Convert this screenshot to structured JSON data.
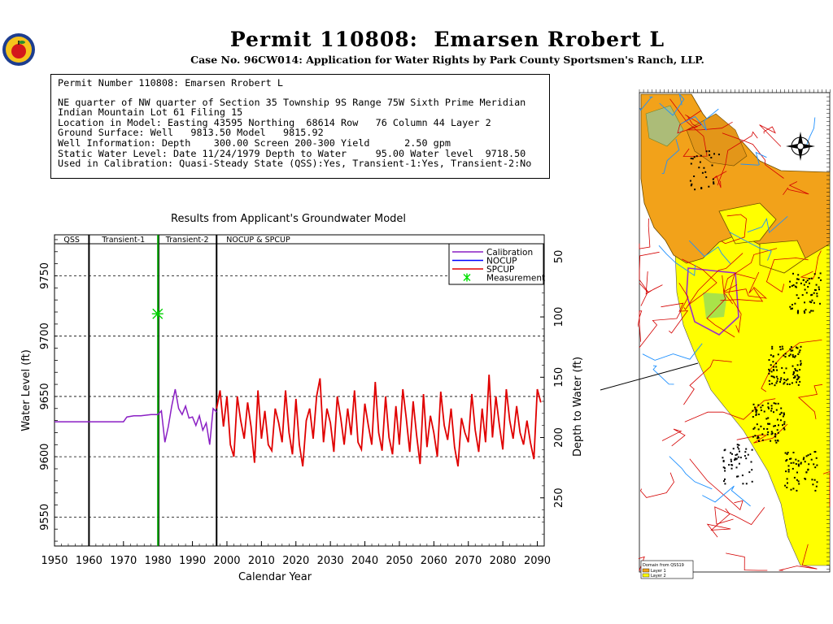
{
  "header": {
    "title": "Permit 110808:  Emarsen Rrobert L",
    "subtitle": "Case No. 96CW014: Application for Water Rights by Park County Sportsmen's Ranch, LLP."
  },
  "info": {
    "lines": [
      "Permit Number 110808: Emarsen Rrobert L",
      "",
      "NE quarter of NW quarter of Section 35 Township 9S Range 75W Sixth Prime Meridian",
      "Indian Mountain Lot 61 Filing 15",
      "Location in Model: Easting 43595 Northing  68614 Row   76 Column 44 Layer 2",
      "Ground Surface: Well   9813.50 Model   9815.92",
      "Well Information: Depth    300.00 Screen 200-300 Yield      2.50 gpm",
      "Static Water Level: Date 11/24/1979 Depth to Water     95.00 Water level  9718.50",
      "Used in Calibration: Quasi-Steady State (QSS):Yes, Transient-1:Yes, Transient-2:No"
    ]
  },
  "chart_title": "Results from Applicant's Groundwater Model",
  "chart_data": {
    "type": "line",
    "xlabel": "Calendar Year",
    "ylabel": "Water Level (ft)",
    "y2label": "Depth to Water (ft)",
    "xlim": [
      1950,
      2092
    ],
    "ylim": [
      9526,
      9784
    ],
    "x_ticks": [
      1950,
      1960,
      1970,
      1980,
      1990,
      2000,
      2010,
      2020,
      2030,
      2040,
      2050,
      2060,
      2070,
      2080,
      2090
    ],
    "y_ticks": [
      9550,
      9600,
      9650,
      9700,
      9750
    ],
    "y2_ticks": [
      50,
      100,
      150,
      200,
      250
    ],
    "ground_surface": 9815.92,
    "grid": true,
    "periods": [
      {
        "label": "QSS",
        "start": 1950,
        "end": 1960
      },
      {
        "label": "Transient-1",
        "start": 1960,
        "end": 1980
      },
      {
        "label": "Transient-2",
        "start": 1980,
        "end": 1997
      },
      {
        "label": "NOCUP  &  SPCUP",
        "start": 1997,
        "end": 2092
      }
    ],
    "legend": {
      "position": "top-right",
      "entries": [
        {
          "name": "Calibration",
          "color": "#8a1fc4"
        },
        {
          "name": "NOCUP",
          "color": "#0000ff"
        },
        {
          "name": "SPCUP",
          "color": "#e00000"
        },
        {
          "name": "Measurement",
          "color": "#00e000"
        }
      ]
    },
    "series": [
      {
        "name": "Calibration",
        "color": "#8a1fc4",
        "x": [
          1950,
          1960,
          1970,
          1971,
          1973,
          1975,
          1978,
          1980,
          1981,
          1982,
          1983,
          1984,
          1985,
          1986,
          1987,
          1988,
          1989,
          1990,
          1991,
          1992,
          1993,
          1994,
          1995,
          1996,
          1997
        ],
        "y": [
          9629,
          9629,
          9629,
          9633,
          9634,
          9634,
          9635,
          9635,
          9638,
          9612,
          9625,
          9642,
          9656,
          9640,
          9635,
          9642,
          9632,
          9633,
          9626,
          9634,
          9622,
          9628,
          9610,
          9640,
          9637
        ]
      },
      {
        "name": "SPCUP",
        "color": "#e00000",
        "x": [
          1997,
          1998,
          1999,
          2000,
          2001,
          2002,
          2003,
          2004,
          2005,
          2006,
          2007,
          2008,
          2009,
          2010,
          2011,
          2012,
          2013,
          2014,
          2015,
          2016,
          2017,
          2018,
          2019,
          2020,
          2021,
          2022,
          2023,
          2024,
          2025,
          2026,
          2027,
          2028,
          2029,
          2030,
          2031,
          2032,
          2033,
          2034,
          2035,
          2036,
          2037,
          2038,
          2039,
          2040,
          2041,
          2042,
          2043,
          2044,
          2045,
          2046,
          2047,
          2048,
          2049,
          2050,
          2051,
          2052,
          2053,
          2054,
          2055,
          2056,
          2057,
          2058,
          2059,
          2060,
          2061,
          2062,
          2063,
          2064,
          2065,
          2066,
          2067,
          2068,
          2069,
          2070,
          2071,
          2072,
          2073,
          2074,
          2075,
          2076,
          2077,
          2078,
          2079,
          2080,
          2081,
          2082,
          2083,
          2084,
          2085,
          2086,
          2087,
          2088,
          2089,
          2090,
          2091
        ],
        "y": [
          9640,
          9655,
          9625,
          9650,
          9610,
          9600,
          9650,
          9630,
          9615,
          9645,
          9625,
          9595,
          9655,
          9615,
          9638,
          9610,
          9605,
          9640,
          9628,
          9612,
          9655,
          9620,
          9602,
          9648,
          9610,
          9592,
          9630,
          9640,
          9615,
          9650,
          9665,
          9612,
          9640,
          9628,
          9604,
          9650,
          9632,
          9610,
          9640,
          9618,
          9655,
          9612,
          9606,
          9644,
          9626,
          9610,
          9662,
          9620,
          9605,
          9650,
          9616,
          9602,
          9642,
          9610,
          9656,
          9632,
          9604,
          9646,
          9618,
          9594,
          9652,
          9608,
          9634,
          9620,
          9600,
          9654,
          9626,
          9614,
          9640,
          9608,
          9592,
          9632,
          9620,
          9612,
          9652,
          9622,
          9604,
          9640,
          9612,
          9668,
          9616,
          9650,
          9626,
          9606,
          9656,
          9630,
          9615,
          9642,
          9620,
          9610,
          9630,
          9612,
          9598,
          9656,
          9645
        ]
      }
    ],
    "measurement": {
      "x": 1979.9,
      "y": 9718.5
    }
  },
  "map": {
    "labels": {
      "legend_title": "Domain from QSS19",
      "legend_layer1": "Layer 1",
      "legend_layer2": "Layer 2"
    },
    "colors": {
      "layer1": "#f2a21a",
      "layer2": "#ffff00",
      "roads": "#d40000",
      "streams": "#1e90ff",
      "wells": "#000000"
    }
  }
}
